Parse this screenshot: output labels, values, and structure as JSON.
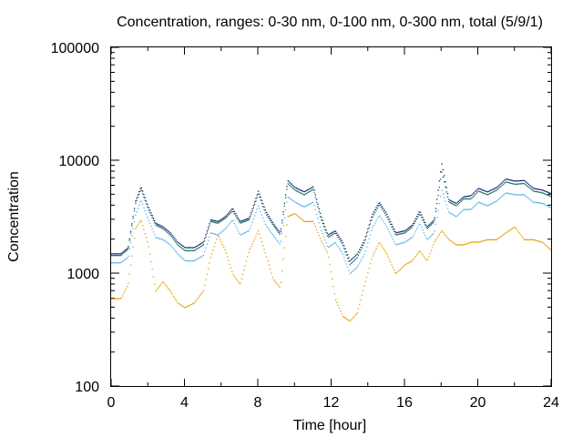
{
  "chart_data": {
    "type": "scatter",
    "title": "Concentration, ranges: 0-30 nm, 0-100 nm, 0-300 nm, total (5/9/1)",
    "xlabel": "Time [hour]",
    "ylabel": "Concentration",
    "xlim": [
      0,
      24
    ],
    "ylim": [
      100,
      100000
    ],
    "yscale": "log",
    "x_ticks": [
      {
        "value": 0,
        "label": "0"
      },
      {
        "value": 4,
        "label": "4"
      },
      {
        "value": 8,
        "label": "8"
      },
      {
        "value": 12,
        "label": "12"
      },
      {
        "value": 16,
        "label": "16"
      },
      {
        "value": 20,
        "label": "20"
      },
      {
        "value": 24,
        "label": "24"
      }
    ],
    "y_ticks": [
      {
        "value": 100,
        "label": "100"
      },
      {
        "value": 1000,
        "label": "1000"
      },
      {
        "value": 10000,
        "label": "10000"
      },
      {
        "value": 100000,
        "label": "100000"
      }
    ],
    "grid": false,
    "legend": "none",
    "x": [
      0,
      0.5,
      0.9,
      1.3,
      1.6,
      2.0,
      2.4,
      2.8,
      3.2,
      3.6,
      4.0,
      4.5,
      5.0,
      5.4,
      5.8,
      6.2,
      6.6,
      7.0,
      7.5,
      8.0,
      8.4,
      8.8,
      9.2,
      9.6,
      10.0,
      10.5,
      11.0,
      11.4,
      11.8,
      12.2,
      12.6,
      13.0,
      13.4,
      13.8,
      14.2,
      14.6,
      15.0,
      15.5,
      16.0,
      16.4,
      16.8,
      17.2,
      17.6,
      18.0,
      18.4,
      18.8,
      19.2,
      19.6,
      20.0,
      20.5,
      21.0,
      21.5,
      22.0,
      22.5,
      23.0,
      23.5,
      24.0
    ],
    "series": [
      {
        "color": "#e69f00",
        "values": [
          600,
          600,
          800,
          2500,
          3000,
          1800,
          700,
          850,
          700,
          550,
          500,
          550,
          700,
          1400,
          2200,
          1600,
          1000,
          800,
          1600,
          2400,
          1500,
          900,
          750,
          3200,
          3400,
          2900,
          2900,
          2000,
          1500,
          600,
          420,
          380,
          450,
          800,
          1400,
          1900,
          1500,
          1000,
          1200,
          1300,
          1600,
          1300,
          1900,
          2400,
          2000,
          1800,
          1800,
          1900,
          1900,
          2000,
          2000,
          2300,
          2600,
          2000,
          2000,
          1900,
          1600
        ]
      },
      {
        "color": "#56b4e9",
        "values": [
          1250,
          1250,
          1400,
          3300,
          4500,
          3000,
          2100,
          2000,
          1800,
          1500,
          1300,
          1300,
          1450,
          2300,
          2200,
          2500,
          3000,
          2200,
          2400,
          4000,
          2700,
          2200,
          1800,
          4800,
          4300,
          3900,
          4300,
          2500,
          1700,
          1900,
          1500,
          1000,
          1150,
          1500,
          2500,
          3300,
          2600,
          1800,
          1900,
          2100,
          2800,
          2000,
          2300,
          5500,
          3500,
          3200,
          3700,
          3700,
          4300,
          4000,
          4400,
          5200,
          5000,
          5000,
          4300,
          4200,
          3800
        ]
      },
      {
        "color": "#0f6e4d",
        "values": [
          1450,
          1450,
          1650,
          4200,
          5600,
          3700,
          2700,
          2500,
          2200,
          1800,
          1600,
          1600,
          1800,
          2900,
          2800,
          3100,
          3600,
          2800,
          3000,
          5100,
          3400,
          2700,
          2200,
          6300,
          5500,
          5000,
          5600,
          3100,
          2100,
          2300,
          1800,
          1200,
          1400,
          1900,
          3100,
          4100,
          3200,
          2200,
          2300,
          2600,
          3400,
          2500,
          2900,
          8000,
          4300,
          4000,
          4600,
          4600,
          5400,
          5000,
          5500,
          6500,
          6200,
          6300,
          5400,
          5200,
          4800
        ]
      },
      {
        "color": "#0b1f7a",
        "values": [
          1500,
          1500,
          1700,
          4400,
          5900,
          3900,
          2800,
          2600,
          2300,
          1900,
          1700,
          1700,
          1900,
          3000,
          2900,
          3200,
          3800,
          2900,
          3100,
          5400,
          3600,
          2800,
          2300,
          6700,
          5800,
          5300,
          5900,
          3300,
          2200,
          2400,
          1900,
          1300,
          1500,
          2000,
          3300,
          4300,
          3400,
          2300,
          2400,
          2700,
          3600,
          2600,
          3000,
          9500,
          4500,
          4200,
          4800,
          4900,
          5700,
          5300,
          5800,
          6900,
          6600,
          6700,
          5700,
          5500,
          5100
        ]
      }
    ]
  }
}
